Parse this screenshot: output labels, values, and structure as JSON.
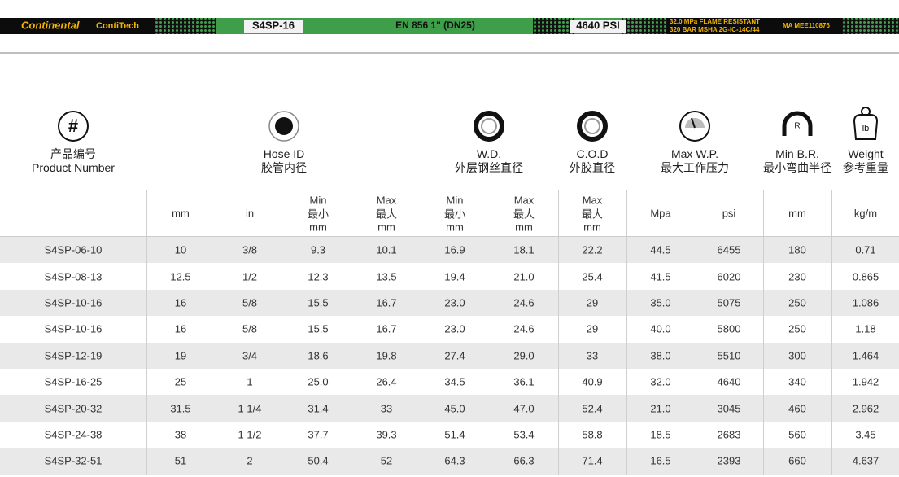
{
  "banner": {
    "brand": "Continental",
    "sub": "ContiTech",
    "code": "S4SP-16",
    "standard": "EN 856 1\" (DN25)",
    "pressure": "4640 PSI",
    "spec_lines": [
      "32.0 MPa  FLAME RESISTANT",
      "320 BAR  MSHA 2G-IC-14C/44"
    ],
    "mark": "MA MEE110876"
  },
  "groups": [
    {
      "icon_label": "#",
      "lines": [
        "产品编号",
        "Product Number"
      ]
    },
    {
      "lines": [
        "Hose ID",
        "胶管内径"
      ]
    },
    {
      "lines": [
        "W.D.",
        "外层钢丝直径"
      ]
    },
    {
      "lines": [
        "C.O.D",
        "外胶直径"
      ]
    },
    {
      "lines": [
        "Max W.P.",
        "最大工作压力"
      ]
    },
    {
      "icon_label": "R",
      "lines": [
        "Min B.R.",
        "最小弯曲半径"
      ]
    },
    {
      "icon_label": "lb",
      "lines": [
        "Weight",
        "参考重量"
      ]
    }
  ],
  "table": {
    "header": [
      [
        "mm"
      ],
      [
        "in"
      ],
      [
        "Min",
        "最小",
        "mm"
      ],
      [
        "Max",
        "最大",
        "mm"
      ],
      [
        "Min",
        "最小",
        "mm"
      ],
      [
        "Max",
        "最大",
        "mm"
      ],
      [
        "Max",
        "最大",
        "mm"
      ],
      [
        "Mpa"
      ],
      [
        "psi"
      ],
      [
        "mm"
      ],
      [
        "kg/m"
      ]
    ],
    "rows": [
      [
        "S4SP-06-10",
        "10",
        "3/8",
        "9.3",
        "10.1",
        "16.9",
        "18.1",
        "22.2",
        "44.5",
        "6455",
        "180",
        "0.71"
      ],
      [
        "S4SP-08-13",
        "12.5",
        "1/2",
        "12.3",
        "13.5",
        "19.4",
        "21.0",
        "25.4",
        "41.5",
        "6020",
        "230",
        "0.865"
      ],
      [
        "S4SP-10-16",
        "16",
        "5/8",
        "15.5",
        "16.7",
        "23.0",
        "24.6",
        "29",
        "35.0",
        "5075",
        "250",
        "1.086"
      ],
      [
        "S4SP-10-16",
        "16",
        "5/8",
        "15.5",
        "16.7",
        "23.0",
        "24.6",
        "29",
        "40.0",
        "5800",
        "250",
        "1.18"
      ],
      [
        "S4SP-12-19",
        "19",
        "3/4",
        "18.6",
        "19.8",
        "27.4",
        "29.0",
        "33",
        "38.0",
        "5510",
        "300",
        "1.464"
      ],
      [
        "S4SP-16-25",
        "25",
        "1",
        "25.0",
        "26.4",
        "34.5",
        "36.1",
        "40.9",
        "32.0",
        "4640",
        "340",
        "1.942"
      ],
      [
        "S4SP-20-32",
        "31.5",
        "1 1/4",
        "31.4",
        "33",
        "45.0",
        "47.0",
        "52.4",
        "21.0",
        "3045",
        "460",
        "2.962"
      ],
      [
        "S4SP-24-38",
        "38",
        "1 1/2",
        "37.7",
        "39.3",
        "51.4",
        "53.4",
        "58.8",
        "18.5",
        "2683",
        "560",
        "3.45"
      ],
      [
        "S4SP-32-51",
        "51",
        "2",
        "50.4",
        "52",
        "64.3",
        "66.3",
        "71.4",
        "16.5",
        "2393",
        "660",
        "4.637"
      ]
    ]
  }
}
